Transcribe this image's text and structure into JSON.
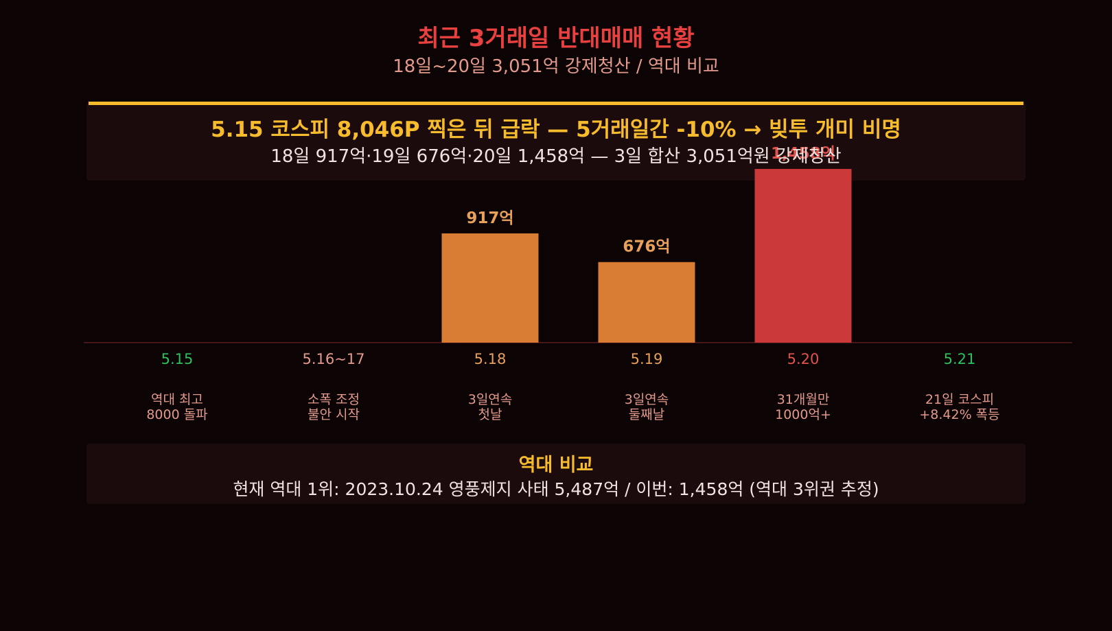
{
  "header": {
    "title": "최근 3거래일 반대매매 현황",
    "subtitle": "18일~20일 3,051억 강제청산 / 역대 비교"
  },
  "headline": {
    "main": "5.15 코스피 8,046P 찍은 뒤 급락 — 5거래일간 -10% → 빚투 개미 비명",
    "sub": "18일 917억·19일 676억·20일 1,458억 — 3일 합산 3,051억원 강제청산"
  },
  "comparison": {
    "title": "역대 비교",
    "text": "현재 역대 1위: 2023.10.24 영풍제지 사태 5,487억 / 이번: 1,458억 (역대 3위권 추정)"
  },
  "colors": {
    "title": "#e8413f",
    "accent": "#f7bb2e",
    "bar_orange": "#d97d34",
    "bar_red": "#cc393a",
    "green": "#2fbf5f",
    "label_pink": "#e39a8d",
    "label_orange": "#e8a05a",
    "label_red": "#e0534f",
    "baseline": "#5a1e1e"
  },
  "chart_data": {
    "type": "bar",
    "categories": [
      "5.15",
      "5.16~17",
      "5.18",
      "5.19",
      "5.20",
      "5.21"
    ],
    "values": [
      null,
      null,
      917,
      676,
      1458,
      null
    ],
    "value_labels": [
      "",
      "",
      "917억",
      "676억",
      "1,458억",
      ""
    ],
    "annotations": [
      [
        "역대 최고",
        "8000 돌파"
      ],
      [
        "소폭 조정",
        "불안 시작"
      ],
      [
        "3일연속",
        "첫날"
      ],
      [
        "3일연속",
        "둘째날"
      ],
      [
        "31개월만",
        "1000억+"
      ],
      [
        "21일 코스피",
        "+8.42% 폭등"
      ]
    ],
    "bar_colors": [
      "",
      "",
      "#d97d34",
      "#d97d34",
      "#cc393a",
      ""
    ],
    "category_colors": [
      "#2fbf5f",
      "#e39a8d",
      "#e8a05a",
      "#e8a05a",
      "#e0534f",
      "#2fbf5f"
    ],
    "value_label_colors": [
      "",
      "",
      "#e8a05a",
      "#e8a05a",
      "#e0534f",
      ""
    ],
    "ylim": [
      0,
      1600
    ],
    "grid": false,
    "legend": "none"
  }
}
